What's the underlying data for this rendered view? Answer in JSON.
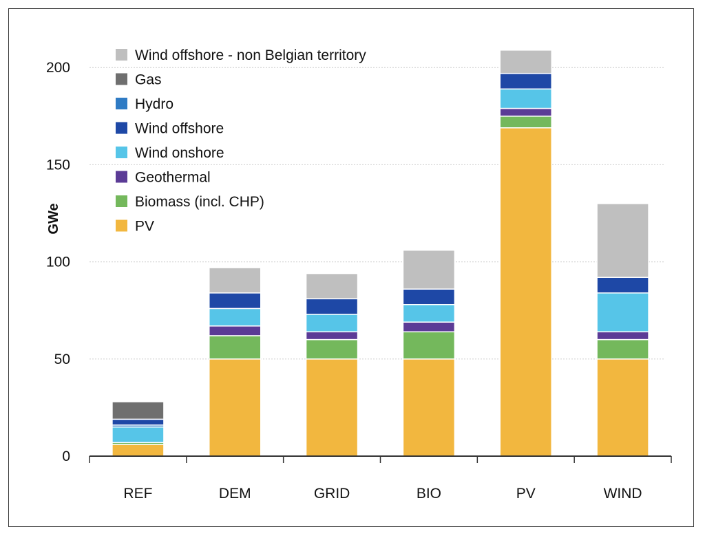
{
  "chart_data": {
    "type": "bar",
    "stacked": true,
    "title": "",
    "xlabel": "",
    "ylabel": "GWe",
    "ylim": [
      0,
      210
    ],
    "yticks": [
      0,
      50,
      100,
      150,
      200
    ],
    "grid": true,
    "legend_position": "top-left",
    "categories": [
      "REF",
      "DEM",
      "GRID",
      "BIO",
      "PV",
      "WIND"
    ],
    "series": [
      {
        "name": "PV",
        "color": "#f2b73f",
        "values": [
          6,
          50,
          50,
          50,
          169,
          50
        ]
      },
      {
        "name": "Biomass (incl. CHP)",
        "color": "#74b85c",
        "values": [
          1,
          12,
          10,
          14,
          6,
          10
        ]
      },
      {
        "name": "Geothermal",
        "color": "#5b3b96",
        "values": [
          0,
          5,
          4,
          5,
          4,
          4
        ]
      },
      {
        "name": "Wind onshore",
        "color": "#56c5e8",
        "values": [
          8,
          9,
          9,
          9,
          10,
          20
        ]
      },
      {
        "name": "Hydro",
        "color": "#2f7bc4",
        "values": [
          1,
          0,
          0,
          0,
          0,
          0
        ]
      },
      {
        "name": "Wind offshore",
        "color": "#1e48a6",
        "values": [
          3,
          8,
          8,
          8,
          8,
          8
        ]
      },
      {
        "name": "Gas",
        "color": "#6f6f6f",
        "values": [
          9,
          0,
          0,
          0,
          0,
          0
        ]
      },
      {
        "name": "Wind offshore - non Belgian territory",
        "color": "#bfbfbf",
        "values": [
          0,
          13,
          13,
          20,
          12,
          38
        ]
      }
    ],
    "legend_order": [
      "Wind offshore - non Belgian territory",
      "Gas",
      "Hydro",
      "Wind offshore",
      "Wind onshore",
      "Geothermal",
      "Biomass (incl. CHP)",
      "PV"
    ]
  }
}
